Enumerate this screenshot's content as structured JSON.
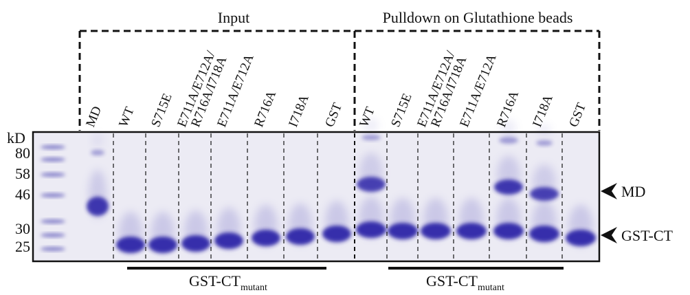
{
  "groups": [
    "Input",
    "Pulldown on Glutathione beads"
  ],
  "lanes": [
    [
      "MD"
    ],
    [
      "WT"
    ],
    [
      "S715E"
    ],
    [
      "E711A/E712A/",
      "R716A/I718A"
    ],
    [
      "E711A/E712A"
    ],
    [
      "R716A"
    ],
    [
      "I718A"
    ],
    [
      "GST"
    ],
    [
      "WT"
    ],
    [
      "S715E"
    ],
    [
      "E711A/E712A/",
      "R716A/I718A"
    ],
    [
      "E711A/E712A"
    ],
    [
      "R716A"
    ],
    [
      "I718A"
    ],
    [
      "GST"
    ]
  ],
  "marker_unit": "kD",
  "markers": [
    80,
    58,
    46,
    30,
    25
  ],
  "bars": [
    {
      "main": "GST-CT",
      "sub": "mutant"
    },
    {
      "main": "GST-CT",
      "sub": "mutant"
    }
  ],
  "arrows": [
    "MD",
    "GST-CT"
  ]
}
